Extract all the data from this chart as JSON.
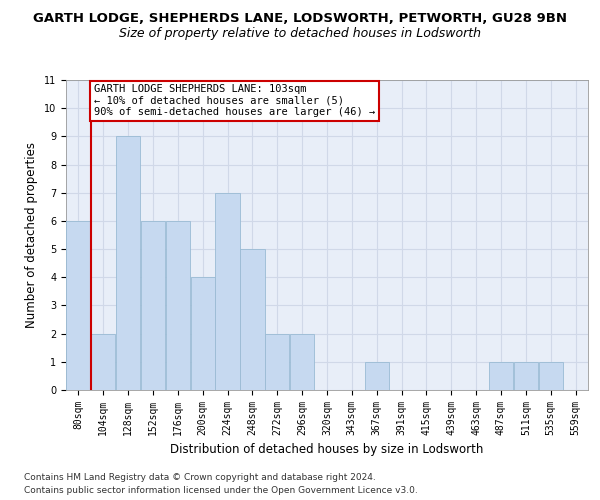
{
  "title1": "GARTH LODGE, SHEPHERDS LANE, LODSWORTH, PETWORTH, GU28 9BN",
  "title2": "Size of property relative to detached houses in Lodsworth",
  "xlabel": "Distribution of detached houses by size in Lodsworth",
  "ylabel": "Number of detached properties",
  "categories": [
    "80sqm",
    "104sqm",
    "128sqm",
    "152sqm",
    "176sqm",
    "200sqm",
    "224sqm",
    "248sqm",
    "272sqm",
    "296sqm",
    "320sqm",
    "343sqm",
    "367sqm",
    "391sqm",
    "415sqm",
    "439sqm",
    "463sqm",
    "487sqm",
    "511sqm",
    "535sqm",
    "559sqm"
  ],
  "values": [
    6,
    2,
    9,
    6,
    6,
    4,
    7,
    5,
    2,
    2,
    0,
    0,
    1,
    0,
    0,
    0,
    0,
    1,
    1,
    1,
    0
  ],
  "bar_color": "#c6d9f0",
  "bar_edge_color": "#9abbd4",
  "annotation_text_lines": [
    "GARTH LODGE SHEPHERDS LANE: 103sqm",
    "← 10% of detached houses are smaller (5)",
    "90% of semi-detached houses are larger (46) →"
  ],
  "annotation_box_color": "#ffffff",
  "annotation_border_color": "#cc0000",
  "vline_color": "#cc0000",
  "vline_x_index": 1,
  "ylim": [
    0,
    11
  ],
  "yticks": [
    0,
    1,
    2,
    3,
    4,
    5,
    6,
    7,
    8,
    9,
    10,
    11
  ],
  "grid_color": "#d0d8e8",
  "background_color": "#e8eef8",
  "footer1": "Contains HM Land Registry data © Crown copyright and database right 2024.",
  "footer2": "Contains public sector information licensed under the Open Government Licence v3.0.",
  "title1_fontsize": 9.5,
  "title2_fontsize": 9,
  "ylabel_fontsize": 8.5,
  "xlabel_fontsize": 8.5,
  "tick_fontsize": 7,
  "annotation_fontsize": 7.5,
  "footer_fontsize": 6.5
}
